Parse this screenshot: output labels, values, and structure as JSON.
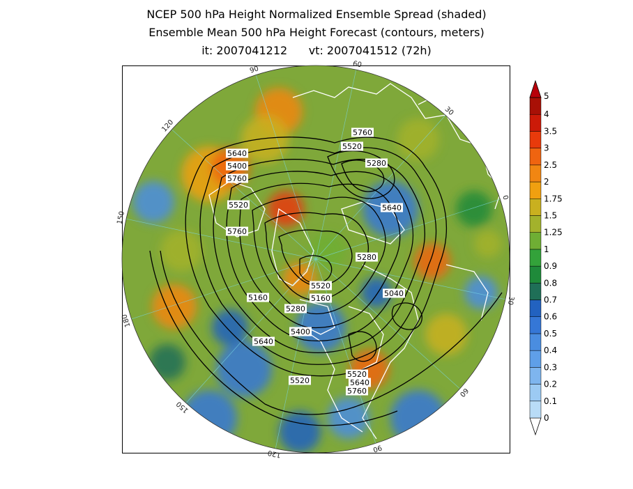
{
  "titles": {
    "line1": "NCEP 500 hPa Height Normalized Ensemble Spread (shaded)",
    "line2": "Ensemble Mean 500 hPa Height Forecast (contours, meters)",
    "line3": "it: 2007041212      vt: 2007041512 (72h)"
  },
  "map": {
    "projection": "north-polar-stereographic",
    "longitude_labels": [
      "60",
      "30",
      "0",
      "30",
      "60",
      "90",
      "120",
      "150",
      "180",
      "150",
      "120",
      "90"
    ],
    "contour_labels": [
      {
        "id": "c1",
        "text": "5760"
      },
      {
        "id": "c2",
        "text": "5640"
      },
      {
        "id": "c3",
        "text": "5520"
      },
      {
        "id": "c4",
        "text": "5400"
      },
      {
        "id": "c5",
        "text": "5280"
      },
      {
        "id": "c6",
        "text": "5760"
      },
      {
        "id": "c7",
        "text": "5640"
      },
      {
        "id": "c8",
        "text": "5520"
      },
      {
        "id": "c9",
        "text": "5760"
      },
      {
        "id": "c10",
        "text": "5280"
      },
      {
        "id": "c11",
        "text": "5520"
      },
      {
        "id": "c12",
        "text": "5040"
      },
      {
        "id": "c13",
        "text": "5160"
      },
      {
        "id": "c14",
        "text": "5160"
      },
      {
        "id": "c15",
        "text": "5280"
      },
      {
        "id": "c16",
        "text": "5400"
      },
      {
        "id": "c17",
        "text": "5640"
      },
      {
        "id": "c18",
        "text": "5520"
      },
      {
        "id": "c19",
        "text": "5520"
      },
      {
        "id": "c20",
        "text": "5640"
      },
      {
        "id": "c21",
        "text": "5760"
      }
    ]
  },
  "colorbar": {
    "levels": [
      "0",
      "0.1",
      "0.2",
      "0.3",
      "0.4",
      "0.5",
      "0.6",
      "0.7",
      "0.8",
      "0.9",
      "1",
      "1.25",
      "1.5",
      "1.75",
      "2",
      "2.5",
      "3",
      "3.5",
      "4",
      "5"
    ],
    "colors": [
      "#b9dcf7",
      "#9ccaf3",
      "#7eb5ee",
      "#5f9fe8",
      "#4a8de0",
      "#3577d6",
      "#2262c0",
      "#1f6f57",
      "#1f8a3a",
      "#33a23a",
      "#6fae34",
      "#a3b22c",
      "#c9b01f",
      "#f0a010",
      "#f18612",
      "#ef6410",
      "#e83a0b",
      "#cc1a08",
      "#a81006"
    ]
  }
}
